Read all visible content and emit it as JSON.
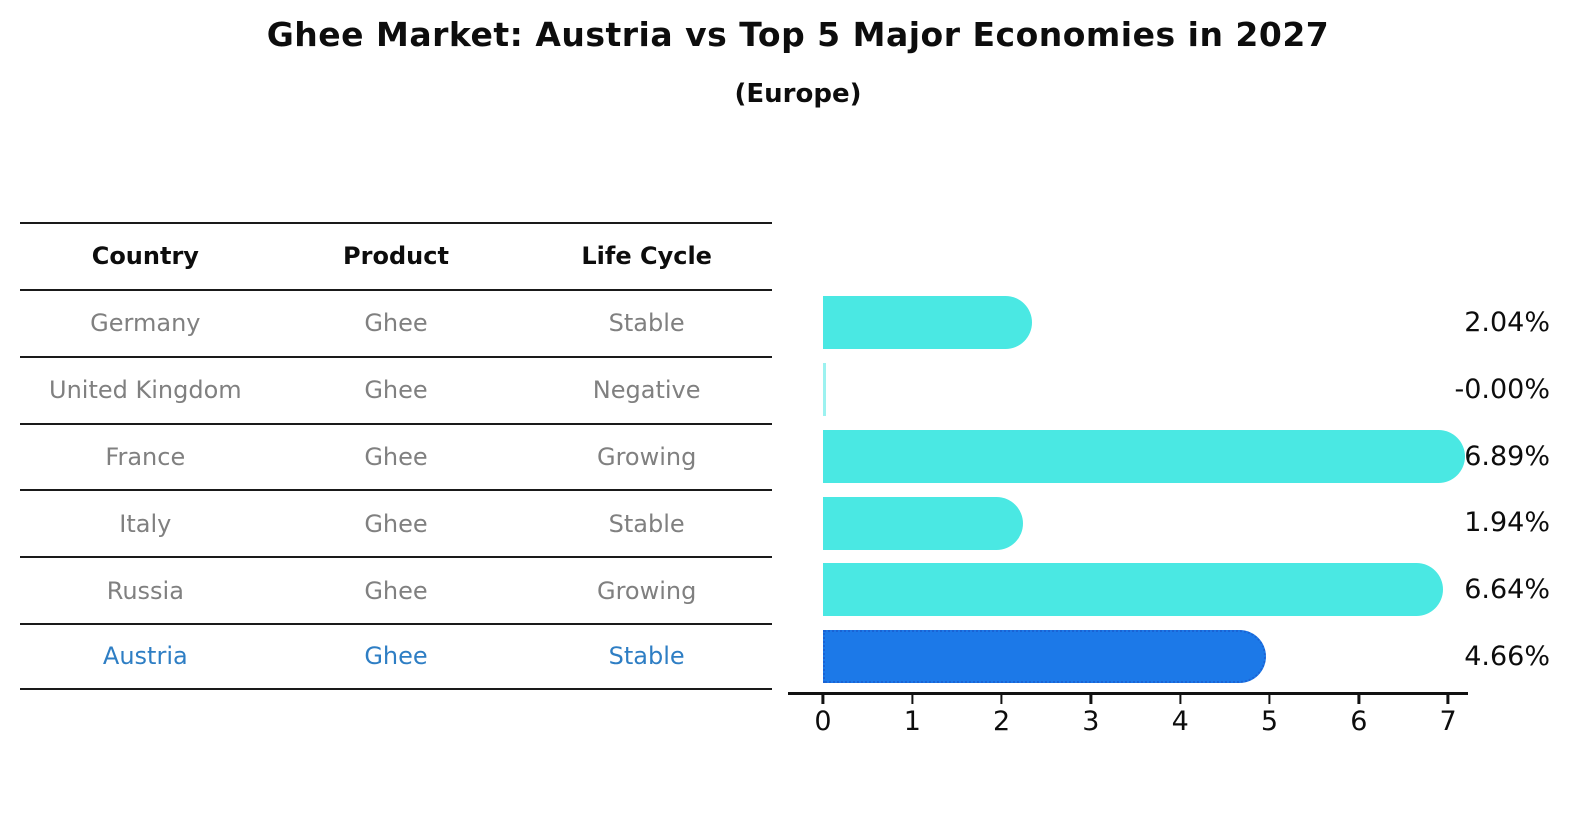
{
  "title": "Ghee Market: Austria vs Top 5 Major Economies in 2027",
  "subtitle": "(Europe)",
  "table": {
    "headers": [
      "Country",
      "Product",
      "Life Cycle"
    ],
    "rows": [
      {
        "country": "Germany",
        "product": "Ghee",
        "life_cycle": "Stable",
        "highlight": false
      },
      {
        "country": "United Kingdom",
        "product": "Ghee",
        "life_cycle": "Negative",
        "highlight": false
      },
      {
        "country": "France",
        "product": "Ghee",
        "life_cycle": "Growing",
        "highlight": false
      },
      {
        "country": "Italy",
        "product": "Ghee",
        "life_cycle": "Stable",
        "highlight": false
      },
      {
        "country": "Russia",
        "product": "Ghee",
        "life_cycle": "Growing",
        "highlight": false
      },
      {
        "country": "Austria",
        "product": "Ghee",
        "life_cycle": "Stable",
        "highlight": true
      }
    ]
  },
  "chart_data": {
    "type": "bar",
    "orientation": "horizontal",
    "title": "Ghee Market: Austria vs Top 5 Major Economies in 2027",
    "subtitle": "(Europe)",
    "categories": [
      "Germany",
      "United Kingdom",
      "France",
      "Italy",
      "Russia",
      "Austria"
    ],
    "values": [
      2.04,
      -0.0,
      6.89,
      1.94,
      6.64,
      4.66
    ],
    "value_labels": [
      "2.04%",
      "-0.00%",
      "6.89%",
      "1.94%",
      "6.64%",
      "4.66%"
    ],
    "x_ticks": [
      "0",
      "1",
      "2",
      "3",
      "4",
      "5",
      "6",
      "7"
    ],
    "xlim": [
      0,
      7
    ],
    "xlabel": "",
    "ylabel": "",
    "grid": false,
    "legend": false,
    "highlight_index": 5,
    "bar_color": "#4ae8e3",
    "highlight_bar_color": "#1c79e8",
    "highlight_border_color": "#1a63d4",
    "text_gray": "#808080",
    "highlight_text_color": "#2e7ec4"
  }
}
